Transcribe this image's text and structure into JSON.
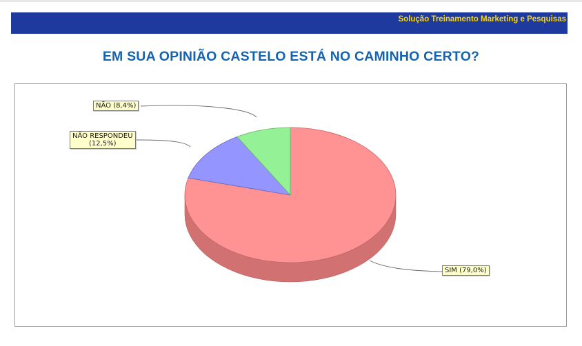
{
  "header": {
    "banner_text": "Solução Treinamento Marketing e Pesquisas",
    "banner_color": "#1f3a9e",
    "banner_text_color": "#ffd800"
  },
  "title": "EM SUA OPINIÃO CASTELO ESTÁ NO CAMINHO CERTO?",
  "chart_data": {
    "type": "pie",
    "style": "3d",
    "labels": [
      "SIM",
      "NÃO RESPONDEU",
      "NÃO"
    ],
    "values": [
      79.0,
      12.5,
      8.4
    ],
    "colors": [
      "#ff8a8a",
      "#8c8cff",
      "#8cf08c"
    ],
    "data_labels": {
      "sim": "SIM (79,0%)",
      "nao_respondeu_line1": "NÃO RESPONDEU",
      "nao_respondeu_line2": "(12,5%)",
      "nao": "NÃO (8,4%)"
    },
    "legend": "none"
  }
}
